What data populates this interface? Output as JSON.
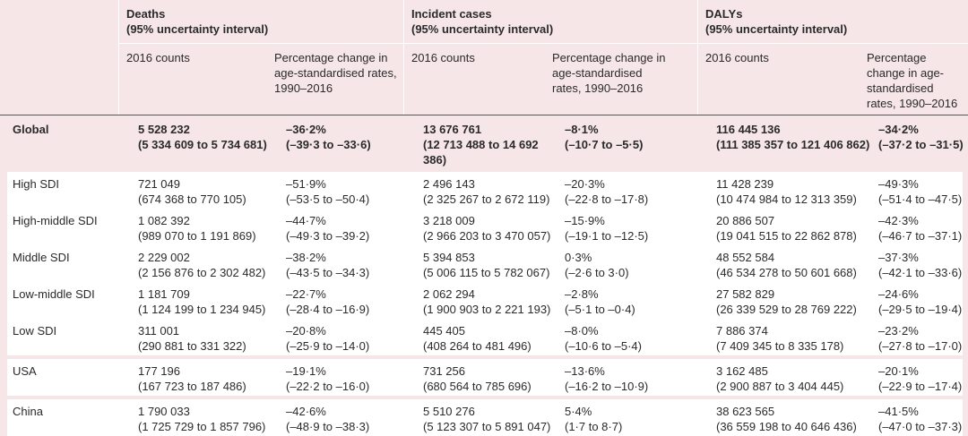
{
  "groups": [
    {
      "title": "Deaths",
      "sub": "(95% uncertainty interval)"
    },
    {
      "title": "Incident cases",
      "sub": "(95% uncertainty interval)"
    },
    {
      "title": "DALYs",
      "sub": "(95% uncertainty interval)"
    }
  ],
  "subheaders": {
    "counts": "2016 counts",
    "pct_a": "Percentage change in age-standardised rates, 1990–2016",
    "pct_dalys": "Percentage change in age-standardised rates, 1990–2016"
  },
  "rows": [
    {
      "label": "Global",
      "d": [
        "5 528 232",
        "(5 334 609 to 5 734 681)",
        "–36·2%",
        "(–39·3 to –33·6)"
      ],
      "i": [
        "13 676 761",
        "(12 713 488 to 14 692 386)",
        "–8·1%",
        "(–10·7 to –5·5)"
      ],
      "y": [
        "116 445 136",
        "(111 385 357 to 121 406 862)",
        "–34·2%",
        "(–37·2 to –31·5)"
      ]
    },
    {
      "label": "High SDI",
      "d": [
        "721 049",
        "(674 368 to 770 105)",
        "–51·9%",
        "(–53·5 to –50·4)"
      ],
      "i": [
        "2 496 143",
        "(2 325 267 to 2 672 119)",
        "–20·3%",
        "(–22·8 to –17·8)"
      ],
      "y": [
        "11 428 239",
        "(10 474 984 to 12 313 359)",
        "–49·3%",
        "(–51·4 to –47·5)"
      ]
    },
    {
      "label": "High-middle SDI",
      "d": [
        "1 082 392",
        "(989 070 to 1 191 869)",
        "–44·7%",
        "(–49·3 to –39·2)"
      ],
      "i": [
        "3 218 009",
        "(2 966 203 to 3 470 057)",
        "–15·9%",
        "(–19·1 to –12·5)"
      ],
      "y": [
        "20 886 507",
        "(19 041 515 to 22 862 878)",
        "–42·3%",
        "(–46·7 to –37·1)"
      ]
    },
    {
      "label": "Middle SDI",
      "d": [
        "2 229 002",
        "(2 156 876 to 2 302 482)",
        "–38·2%",
        "(–43·5 to –34·3)"
      ],
      "i": [
        "5 394 853",
        "(5 006 115 to 5 782 067)",
        "0·3%",
        "(–2·6 to 3·0)"
      ],
      "y": [
        "48 552 584",
        "(46 534 278 to 50 601 668)",
        "–37·3%",
        "(–42·1 to –33·6)"
      ]
    },
    {
      "label": "Low-middle SDI",
      "d": [
        "1 181 709",
        "(1 124 199 to 1 234 945)",
        "–22·7%",
        "(–28·4 to –16·9)"
      ],
      "i": [
        "2 062 294",
        "(1 900 903 to 2 221 193)",
        "–2·8%",
        "(–5·1 to –0·4)"
      ],
      "y": [
        "27 582 829",
        "(26 339 529 to 28 769 222)",
        "–24·6%",
        "(–29·5 to –19·4)"
      ]
    },
    {
      "label": "Low SDI",
      "d": [
        "311 001",
        "(290 881 to 331 322)",
        "–20·8%",
        "(–25·9 to –14·0)"
      ],
      "i": [
        "445 405",
        "(408 264 to 481 496)",
        "–8·0%",
        "(–10·6 to –5·4)"
      ],
      "y": [
        "7 886 374",
        "(7 409 345 to 8 335 178)",
        "–23·2%",
        "(–27·8 to –17·0)"
      ]
    },
    {
      "label": "USA",
      "d": [
        "177 196",
        "(167 723 to 187 486)",
        "–19·1%",
        "(–22·2 to –16·0)"
      ],
      "i": [
        "731 256",
        "(680 564 to 785 696)",
        "–13·6%",
        "(–16·2 to –10·9)"
      ],
      "y": [
        "3 162 485",
        "(2 900 887 to 3 404 445)",
        "–20·1%",
        "(–22·9 to –17·4)"
      ]
    },
    {
      "label": "China",
      "d": [
        "1 790 033",
        "(1 725 729 to 1 857 796)",
        "–42·6%",
        "(–48·9 to –38·3)"
      ],
      "i": [
        "5 510 276",
        "(5 123 307 to 5 891 047)",
        "5·4%",
        "(1·7 to 8·7)"
      ],
      "y": [
        "38 623 565",
        "(36 559 198 to 40 646 436)",
        "–41·5%",
        "(–47·0 to –37·3)"
      ]
    }
  ]
}
